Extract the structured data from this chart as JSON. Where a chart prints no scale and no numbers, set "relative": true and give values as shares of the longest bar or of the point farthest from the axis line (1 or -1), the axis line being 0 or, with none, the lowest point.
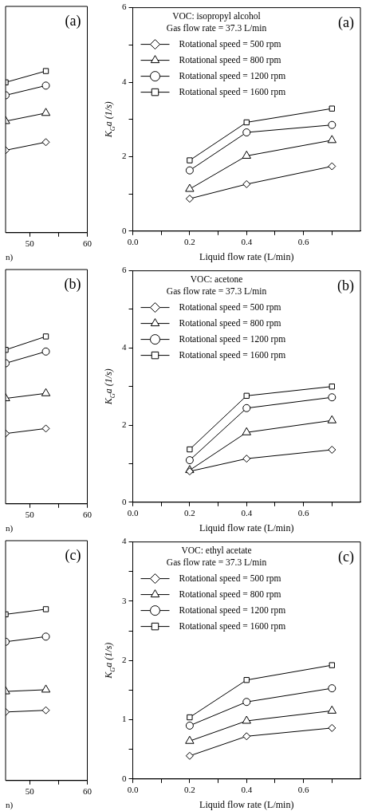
{
  "chart_data": [
    {
      "type": "line",
      "relative": true,
      "x": [
        45.8,
        52.8
      ],
      "xlim": [
        45.8,
        60
      ],
      "xticks": [
        {
          "value": 50,
          "label": "50"
        },
        {
          "value": 55,
          "label": null
        },
        {
          "value": 60,
          "label": "60"
        }
      ],
      "xlabel": "n)",
      "annotations": [
        "(a)"
      ],
      "grid": false,
      "legend": false,
      "series": [
        {
          "color": "#000000",
          "marker": "diamond",
          "values": [
            0.51,
            0.56
          ]
        },
        {
          "color": "#000000",
          "marker": "triangle",
          "values": [
            0.69,
            0.74
          ]
        },
        {
          "color": "#000000",
          "marker": "circle",
          "values": [
            0.85,
            0.91
          ]
        },
        {
          "color": "#000000",
          "marker": "square",
          "values": [
            0.93,
            1
          ]
        }
      ]
    },
    {
      "type": "line",
      "x": [
        0.2,
        0.4,
        0.7
      ],
      "xlim": [
        0,
        0.8
      ],
      "xticks": [
        {
          "value": 0,
          "label": "0.0"
        },
        {
          "value": 0.1,
          "label": null
        },
        {
          "value": 0.2,
          "label": "0.2"
        },
        {
          "value": 0.3,
          "label": null
        },
        {
          "value": 0.4,
          "label": "0.4"
        },
        {
          "value": 0.5,
          "label": null
        },
        {
          "value": 0.6,
          "label": "0.6"
        },
        {
          "value": 0.7,
          "label": null
        }
      ],
      "ylim": [
        0,
        6
      ],
      "yticks": [
        0,
        {
          "value": 1,
          "label": null
        },
        2,
        {
          "value": 3,
          "label": null
        },
        4,
        {
          "value": 5,
          "label": null
        },
        6
      ],
      "xlabel": "Liquid flow rate (L/min)",
      "ylabel": "K$_{G}$a (1/s)",
      "annotations": [
        "VOC: isopropyl alcohol",
        "Gas flow rate = 37.3 L/min",
        "(a)"
      ],
      "grid": false,
      "legend": "top left",
      "series": [
        {
          "name": "Rotational speed = 500 rpm",
          "color": "#000000",
          "marker": "diamond",
          "values": [
            0.87,
            1.26,
            1.74
          ]
        },
        {
          "name": "Rotational speed = 800 rpm",
          "color": "#000000",
          "marker": "triangle",
          "values": [
            1.13,
            2.02,
            2.44
          ]
        },
        {
          "name": "Rotational speed = 1200 rpm",
          "color": "#000000",
          "marker": "circle",
          "values": [
            1.63,
            2.65,
            2.85
          ]
        },
        {
          "name": "Rotational speed = 1600 rpm",
          "color": "#000000",
          "marker": "square",
          "values": [
            1.9,
            2.92,
            3.29
          ]
        }
      ]
    },
    {
      "type": "line",
      "relative": true,
      "x": [
        45.8,
        52.8
      ],
      "xlim": [
        45.8,
        60
      ],
      "xticks": [
        {
          "value": 50,
          "label": "50"
        },
        {
          "value": 55,
          "label": null
        },
        {
          "value": 60,
          "label": "60"
        }
      ],
      "xlabel": "n)",
      "annotations": [
        "(b)"
      ],
      "grid": false,
      "legend": false,
      "series": [
        {
          "color": "#000000",
          "marker": "diamond",
          "values": [
            0.42,
            0.45
          ]
        },
        {
          "color": "#000000",
          "marker": "triangle",
          "values": [
            0.63,
            0.66
          ]
        },
        {
          "color": "#000000",
          "marker": "circle",
          "values": [
            0.84,
            0.91
          ]
        },
        {
          "color": "#000000",
          "marker": "square",
          "values": [
            0.92,
            1
          ]
        }
      ]
    },
    {
      "type": "line",
      "x": [
        0.2,
        0.4,
        0.7
      ],
      "xlim": [
        0,
        0.8
      ],
      "xticks": [
        {
          "value": 0,
          "label": "0.0"
        },
        {
          "value": 0.1,
          "label": null
        },
        {
          "value": 0.2,
          "label": "0.2"
        },
        {
          "value": 0.3,
          "label": null
        },
        {
          "value": 0.4,
          "label": "0.4"
        },
        {
          "value": 0.5,
          "label": null
        },
        {
          "value": 0.6,
          "label": "0.6"
        },
        {
          "value": 0.7,
          "label": null
        }
      ],
      "ylim": [
        0,
        6
      ],
      "yticks": [
        0,
        {
          "value": 1,
          "label": null
        },
        2,
        {
          "value": 3,
          "label": null
        },
        4,
        {
          "value": 5,
          "label": null
        },
        6
      ],
      "xlabel": "Liquid flow rate (L/min)",
      "ylabel": "K$_{G}$a (1/s)",
      "annotations": [
        "VOC: acetone",
        "Gas flow rate = 37.3 L/min",
        "(b)"
      ],
      "grid": false,
      "legend": "top left",
      "series": [
        {
          "name": "Rotational speed = 500 rpm",
          "color": "#000000",
          "marker": "diamond",
          "values": [
            0.8,
            1.13,
            1.36
          ]
        },
        {
          "name": "Rotational speed = 800 rpm",
          "color": "#000000",
          "marker": "triangle",
          "values": [
            0.83,
            1.81,
            2.12
          ]
        },
        {
          "name": "Rotational speed = 1200 rpm",
          "color": "#000000",
          "marker": "circle",
          "values": [
            1.09,
            2.44,
            2.72
          ]
        },
        {
          "name": "Rotational speed = 1600 rpm",
          "color": "#000000",
          "marker": "square",
          "values": [
            1.37,
            2.76,
            3.0
          ]
        }
      ]
    },
    {
      "type": "line",
      "relative": true,
      "x": [
        45.8,
        52.8
      ],
      "xlim": [
        45.8,
        60
      ],
      "xticks": [
        {
          "value": 50,
          "label": "50"
        },
        {
          "value": 55,
          "label": null
        },
        {
          "value": 60,
          "label": "60"
        }
      ],
      "xlabel": "n)",
      "annotations": [
        "(c)"
      ],
      "grid": false,
      "legend": false,
      "series": [
        {
          "color": "#000000",
          "marker": "diamond",
          "values": [
            0.4,
            0.41
          ]
        },
        {
          "color": "#000000",
          "marker": "triangle",
          "values": [
            0.52,
            0.53
          ]
        },
        {
          "color": "#000000",
          "marker": "circle",
          "values": [
            0.81,
            0.84
          ]
        },
        {
          "color": "#000000",
          "marker": "square",
          "values": [
            0.97,
            1
          ]
        }
      ]
    },
    {
      "type": "line",
      "x": [
        0.2,
        0.4,
        0.7
      ],
      "xlim": [
        0,
        0.8
      ],
      "xticks": [
        {
          "value": 0,
          "label": "0.0"
        },
        {
          "value": 0.1,
          "label": null
        },
        {
          "value": 0.2,
          "label": "0.2"
        },
        {
          "value": 0.3,
          "label": null
        },
        {
          "value": 0.4,
          "label": "0.4"
        },
        {
          "value": 0.5,
          "label": null
        },
        {
          "value": 0.6,
          "label": "0.6"
        },
        {
          "value": 0.7,
          "label": null
        }
      ],
      "ylim": [
        0,
        4
      ],
      "yticks": [
        0,
        {
          "value": 0.5,
          "label": null
        },
        1,
        {
          "value": 1.5,
          "label": null
        },
        2,
        {
          "value": 2.5,
          "label": null
        },
        3,
        {
          "value": 3.5,
          "label": null
        },
        4
      ],
      "xlabel": "Liquid flow rate (L/min)",
      "ylabel": "K$_{G}$a (1/s)",
      "annotations": [
        "VOC: ethyl acetate",
        "Gas flow rate = 37.3 L/min",
        "(c)"
      ],
      "grid": false,
      "legend": "top left",
      "series": [
        {
          "name": "Rotational speed = 500 rpm",
          "color": "#000000",
          "marker": "diamond",
          "values": [
            0.39,
            0.72,
            0.86
          ]
        },
        {
          "name": "Rotational speed = 800 rpm",
          "color": "#000000",
          "marker": "triangle",
          "values": [
            0.64,
            0.98,
            1.15
          ]
        },
        {
          "name": "Rotational speed = 1200 rpm",
          "color": "#000000",
          "marker": "circle",
          "values": [
            0.9,
            1.3,
            1.53
          ]
        },
        {
          "name": "Rotational speed = 1600 rpm",
          "color": "#000000",
          "marker": "square",
          "values": [
            1.04,
            1.67,
            1.92
          ]
        }
      ]
    }
  ]
}
